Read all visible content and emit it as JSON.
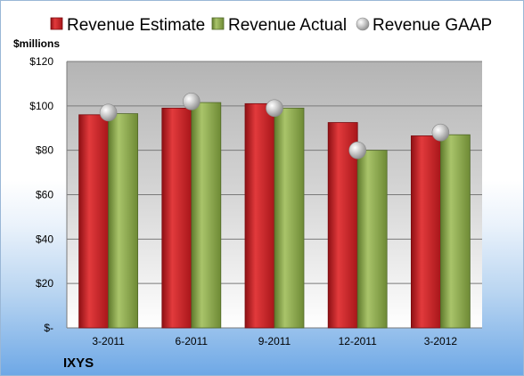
{
  "chart_data": {
    "type": "bar",
    "company": "IXYS",
    "unit_label": "$millions",
    "categories": [
      "3-2011",
      "6-2011",
      "9-2011",
      "12-2011",
      "3-2012"
    ],
    "series": [
      {
        "name": "Revenue Estimate",
        "kind": "bar",
        "color": "#cc1f24",
        "values": [
          96,
          99,
          101,
          92.5,
          86.5
        ]
      },
      {
        "name": "Revenue Actual",
        "kind": "bar",
        "color": "#8aaa4a",
        "values": [
          96.5,
          101.5,
          99,
          80,
          87
        ]
      },
      {
        "name": "Revenue GAAP",
        "kind": "marker",
        "color": "#c8c8c8",
        "values": [
          97,
          102,
          99,
          80,
          88
        ]
      }
    ],
    "yticks": [
      {
        "value": 0,
        "label": "$-"
      },
      {
        "value": 20,
        "label": "$20"
      },
      {
        "value": 40,
        "label": "$40"
      },
      {
        "value": 60,
        "label": "$60"
      },
      {
        "value": 80,
        "label": "$80"
      },
      {
        "value": 100,
        "label": "$100"
      },
      {
        "value": 120,
        "label": "$120"
      }
    ],
    "ylim": [
      0,
      120
    ],
    "grid": true,
    "legend_position": "top"
  }
}
